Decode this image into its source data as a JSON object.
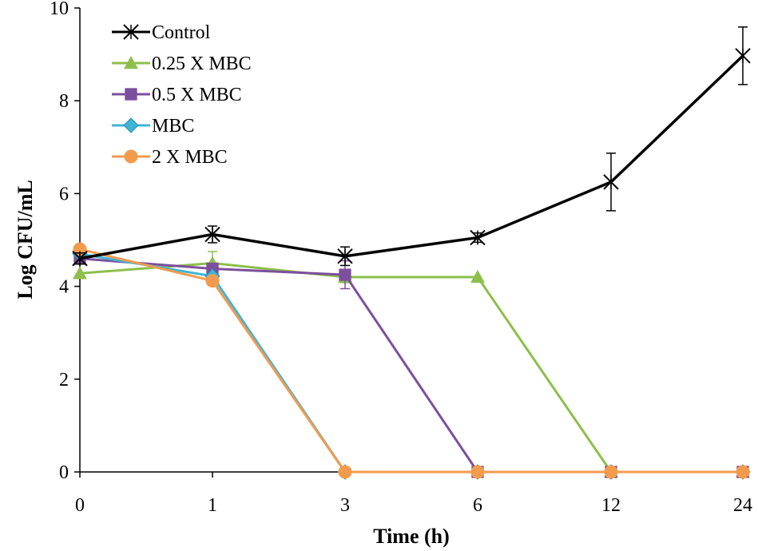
{
  "chart_data": {
    "type": "line",
    "title": "",
    "xlabel": "Time (h)",
    "ylabel": "Log CFU/mL",
    "categories": [
      "0",
      "1",
      "3",
      "6",
      "12",
      "24"
    ],
    "ylim": [
      0,
      10
    ],
    "yticks": [
      "0",
      "2",
      "4",
      "6",
      "8",
      "10"
    ],
    "grid": false,
    "legend_position": "top-left",
    "series": [
      {
        "name": "Control",
        "color": "#000000",
        "marker": "star-cross",
        "values": [
          4.6,
          5.12,
          4.65,
          5.05,
          6.25,
          8.97
        ],
        "errors": [
          0.12,
          0.18,
          0.2,
          0.1,
          0.62,
          0.62
        ]
      },
      {
        "name": "0.25 X MBC",
        "color": "#8dbf4a",
        "marker": "triangle",
        "values": [
          4.28,
          4.5,
          4.2,
          4.2,
          0,
          0
        ],
        "errors": [
          0.0,
          0.25,
          0.12,
          0.0,
          0.0,
          0.0
        ]
      },
      {
        "name": "0.5 X MBC",
        "color": "#7c4f9e",
        "marker": "square",
        "values": [
          4.6,
          4.38,
          4.25,
          0,
          0,
          0
        ],
        "errors": [
          0.0,
          0.0,
          0.3,
          0.0,
          0.0,
          0.0
        ]
      },
      {
        "name": "MBC",
        "color": "#3fb5d6",
        "marker": "diamond",
        "values": [
          4.7,
          4.22,
          0,
          0,
          0,
          0
        ],
        "errors": [
          0.0,
          0.0,
          0.0,
          0.0,
          0.0,
          0.0
        ]
      },
      {
        "name": "2 X MBC",
        "color": "#f39b4c",
        "marker": "circle",
        "values": [
          4.8,
          4.12,
          0,
          0,
          0,
          0
        ],
        "errors": [
          0.0,
          0.0,
          0.0,
          0.0,
          0.0,
          0.0
        ]
      }
    ]
  }
}
